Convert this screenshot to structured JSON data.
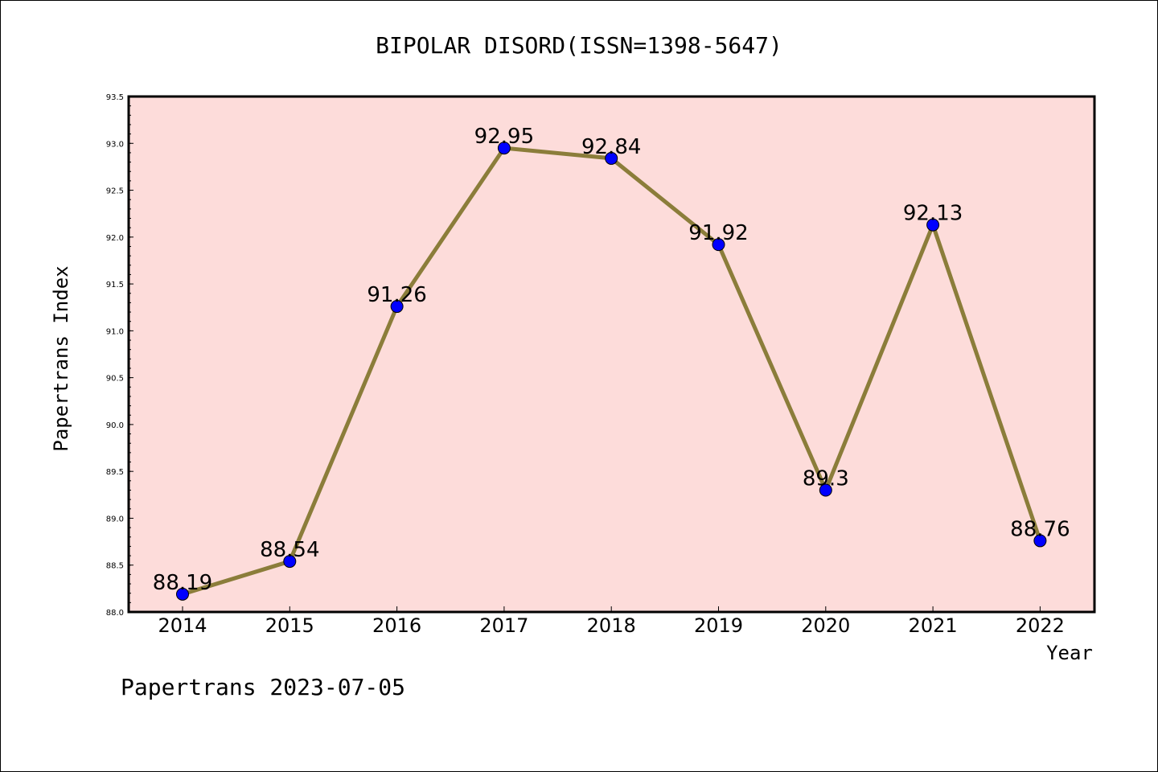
{
  "chart_data": {
    "type": "line",
    "title": "BIPOLAR DISORD(ISSN=1398-5647)",
    "xlabel": "Year",
    "ylabel": "Papertrans Index",
    "categories": [
      "2014",
      "2015",
      "2016",
      "2017",
      "2018",
      "2019",
      "2020",
      "2021",
      "2022"
    ],
    "values": [
      88.19,
      88.54,
      91.26,
      92.95,
      92.84,
      91.92,
      89.3,
      92.13,
      88.76
    ],
    "data_labels": [
      "88.19",
      "88.54",
      "91.26",
      "92.95",
      "92.84",
      "91.92",
      "89.3",
      "92.13",
      "88.76"
    ],
    "ylim": [
      88.0,
      93.5
    ],
    "yticks": [
      "88.0",
      "88.5",
      "89.0",
      "89.5",
      "90.0",
      "90.5",
      "91.0",
      "91.5",
      "92.0",
      "92.5",
      "93.0",
      "93.5"
    ],
    "grid": false,
    "colors": {
      "plot_background": "#fddcda",
      "line": "#8b7d3a",
      "marker": "#0000ff"
    }
  },
  "footer": "Papertrans 2023-07-05"
}
